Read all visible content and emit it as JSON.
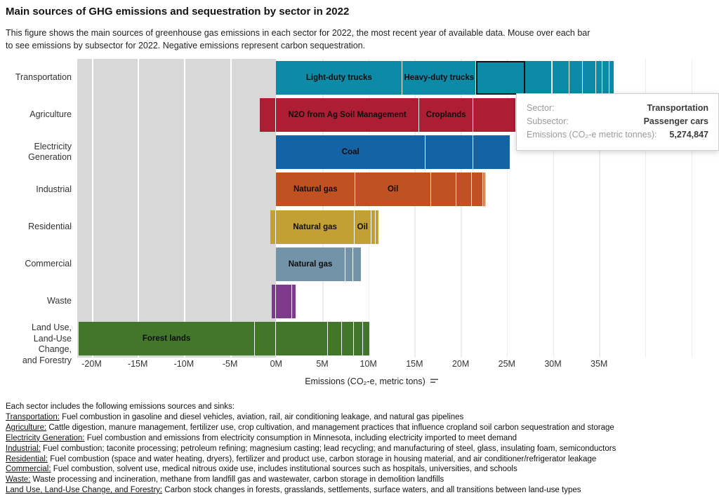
{
  "title": "Main sources of GHG emissions and sequestration by sector in 2022",
  "subtitle_lines": [
    "This figure shows the main sources of greenhouse gas emissions in each sector for 2022, the most recent year of available data. Mouse over each bar",
    "to see emissions by subsector for 2022. Negative emissions represent carbon sequestration."
  ],
  "tooltip": {
    "rows": [
      {
        "label": "Sector:",
        "value": "Transportation"
      },
      {
        "label": "Subsector:",
        "value": "Passenger cars"
      },
      {
        "label": "Emissions (CO₂-e metric tonnes):",
        "value": "5,274,847"
      }
    ]
  },
  "chart_data": {
    "type": "bar",
    "orientation": "horizontal-stacked",
    "title": "Main sources of GHG emissions and sequestration by sector in 2022",
    "xlabel": "Emissions (CO₂-e, metric tons)",
    "ylabel": "",
    "unit": "million metric tons CO₂-e",
    "xlim_millions": [
      -21.6,
      47.3
    ],
    "grid": true,
    "x_ticks": [
      {
        "label": "-20M",
        "value_millions": -20
      },
      {
        "label": "-15M",
        "value_millions": -15
      },
      {
        "label": "-10M",
        "value_millions": -10
      },
      {
        "label": "-5M",
        "value_millions": -5
      },
      {
        "label": "0M",
        "value_millions": 0
      },
      {
        "label": "5M",
        "value_millions": 5
      },
      {
        "label": "10M",
        "value_millions": 10
      },
      {
        "label": "15M",
        "value_millions": 15
      },
      {
        "label": "20M",
        "value_millions": 20
      },
      {
        "label": "25M",
        "value_millions": 25
      },
      {
        "label": "30M",
        "value_millions": 30
      },
      {
        "label": "35M",
        "value_millions": 35
      }
    ],
    "grid_values_millions": [
      -20,
      -15,
      -10,
      -5,
      5,
      10,
      15,
      20,
      25,
      30,
      35,
      40,
      45
    ],
    "negative_region_color": "#d8d8d8",
    "rows": [
      {
        "sector": "Transportation",
        "label_lines": [
          "Transportation"
        ],
        "color": "#0c8aa6",
        "segments": [
          {
            "label": "Light-duty trucks",
            "value_millions": 13.7
          },
          {
            "label": "Heavy-duty trucks",
            "value_millions": 8.0
          },
          {
            "label": "",
            "subsector": "Passenger cars",
            "value_millions": 5.274847,
            "highlighted": true
          },
          {
            "label": "",
            "value_millions": 2.95
          },
          {
            "label": "",
            "value_millions": 1.85
          },
          {
            "label": "",
            "value_millions": 1.45
          },
          {
            "label": "",
            "value_millions": 1.45
          },
          {
            "label": "",
            "value_millions": 0.7
          },
          {
            "label": "",
            "value_millions": 0.75
          },
          {
            "label": "",
            "value_millions": 0.55
          }
        ]
      },
      {
        "sector": "Agriculture",
        "label_lines": [
          "Agriculture"
        ],
        "color": "#ad1e35",
        "segments": [
          {
            "label": "",
            "value_millions": -1.75
          },
          {
            "label": "N2O from Ag Soil Management",
            "value_millions": 15.5
          },
          {
            "label": "Croplands",
            "value_millions": 5.9
          },
          {
            "label": "",
            "value_millions": 4.6
          }
        ]
      },
      {
        "sector": "Electricity Generation",
        "label_lines": [
          "Electricity",
          "Generation"
        ],
        "color": "#1464a5",
        "segments": [
          {
            "label": "Coal",
            "value_millions": 16.2
          },
          {
            "label": "",
            "value_millions": 5.2
          },
          {
            "label": "",
            "value_millions": 4.0
          }
        ]
      },
      {
        "sector": "Industrial",
        "label_lines": [
          "Industrial"
        ],
        "color": "#c05120",
        "segments": [
          {
            "label": "Natural gas",
            "value_millions": 8.6
          },
          {
            "label": "Oil",
            "value_millions": 8.2
          },
          {
            "label": "",
            "value_millions": 2.7
          },
          {
            "label": "",
            "value_millions": 1.7
          },
          {
            "label": "",
            "value_millions": 1.2
          },
          {
            "label": "",
            "value_millions": 0.2
          },
          {
            "label": "",
            "value_millions": 0.15
          }
        ]
      },
      {
        "sector": "Residential",
        "label_lines": [
          "Residential"
        ],
        "color": "#c2a033",
        "segments": [
          {
            "label": "",
            "value_millions": -0.65
          },
          {
            "label": "Natural gas",
            "value_millions": 8.5
          },
          {
            "label": "Oil",
            "value_millions": 1.8
          },
          {
            "label": "",
            "value_millions": 0.45
          },
          {
            "label": "",
            "value_millions": 0.45
          }
        ]
      },
      {
        "sector": "Commercial",
        "label_lines": [
          "Commercial"
        ],
        "color": "#7394a8",
        "segments": [
          {
            "label": "Natural gas",
            "value_millions": 7.5
          },
          {
            "label": "",
            "value_millions": 0.85
          },
          {
            "label": "",
            "value_millions": 0.95
          }
        ]
      },
      {
        "sector": "Waste",
        "label_lines": [
          "Waste"
        ],
        "color": "#7d3a8c",
        "segments": [
          {
            "label": "",
            "value_millions": -0.5
          },
          {
            "label": "",
            "value_millions": 1.7
          },
          {
            "label": "",
            "value_millions": 0.45
          }
        ]
      },
      {
        "sector": "Land Use, Land-Use Change, and Forestry",
        "label_lines": [
          "Land Use,",
          "Land-Use Change,",
          "and Forestry"
        ],
        "color": "#41762b",
        "segments": [
          {
            "label": "Forest lands",
            "value_millions": -19.1
          },
          {
            "label": "",
            "value_millions": -2.3
          },
          {
            "label": "",
            "value_millions": 5.6
          },
          {
            "label": "",
            "value_millions": 1.5
          },
          {
            "label": "",
            "value_millions": 1.3
          },
          {
            "label": "",
            "value_millions": 1.0
          },
          {
            "label": "",
            "value_millions": 0.75
          }
        ]
      }
    ]
  },
  "footer": {
    "heading": "Each sector includes the following emissions sources and sinks:",
    "entries": [
      {
        "term": "Transportation:",
        "text": "Fuel combustion in gasoline and diesel vehicles, aviation, rail, air conditioning leakage, and natural gas pipelines"
      },
      {
        "term": "Agriculture:",
        "text": "Cattle digestion, manure management, fertilizer use, crop cultivation, and management practices that influence cropland soil carbon sequestration and storage"
      },
      {
        "term": "Electricity Generation:",
        "text": "Fuel combustion and emissions from electricity consumption in Minnesota, including electricity imported to meet demand"
      },
      {
        "term": "Industrial:",
        "text": "Fuel combustion; taconite processing; petroleum refining; magnesium casting; lead recycling; and manufacturing of steel, glass, insulating foam, semiconductors"
      },
      {
        "term": "Residential:",
        "text": "Fuel combustion (space and water heating, dryers), fertilizer and product use,  carbon storage in housing material, and air conditioner/refrigerator leakage"
      },
      {
        "term": "Commercial:",
        "text": "Fuel combustion, solvent use, medical nitrous oxide use, includes institutional sources such as hospitals, universities, and schools"
      },
      {
        "term": "Waste:",
        "text": "Waste processing and incineration, methane from landfill gas and wastewater, carbon storage in demolition landfills"
      },
      {
        "term": "Land Use, Land-Use Change, and Forestry:",
        "text": "Carbon stock changes in forests, grasslands, settlements, surface waters, and all transitions between land-use types"
      }
    ]
  }
}
